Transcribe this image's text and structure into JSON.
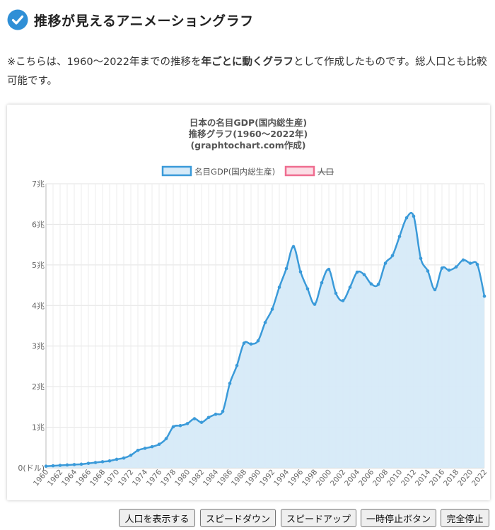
{
  "header": {
    "title": "推移が見えるアニメーショングラフ",
    "icon": "check-circle-icon",
    "icon_color": "#2f8fd6"
  },
  "description": {
    "part1": "※こちらは、1960〜2022年までの推移を",
    "bold": "年ごとに動くグラフ",
    "part2": "として作成したものです。総人口とも比較可能です。"
  },
  "chart_data": {
    "type": "area",
    "title": [
      "日本の名目GDP(国内総生産)",
      "推移グラフ(1960〜2022年)",
      "(graphtochart.com作成)"
    ],
    "legend": [
      {
        "label": "名目GDP(国内総生産)",
        "color": "#3a9ad9",
        "fill": "#d6eaf8",
        "hidden": false
      },
      {
        "label": "人口",
        "color": "#ef6d90",
        "fill": "#fbdde5",
        "hidden": true
      }
    ],
    "legend_position": "top",
    "yticks": [
      "0(ドル)",
      "1兆",
      "2兆",
      "3兆",
      "4兆",
      "5兆",
      "6兆",
      "7兆"
    ],
    "ylim": [
      0,
      7
    ],
    "grid": true,
    "x": [
      1960,
      1961,
      1962,
      1963,
      1964,
      1965,
      1966,
      1967,
      1968,
      1969,
      1970,
      1971,
      1972,
      1973,
      1974,
      1975,
      1976,
      1977,
      1978,
      1979,
      1980,
      1981,
      1982,
      1983,
      1984,
      1985,
      1986,
      1987,
      1988,
      1989,
      1990,
      1991,
      1992,
      1993,
      1994,
      1995,
      1996,
      1997,
      1998,
      1999,
      2000,
      2001,
      2002,
      2003,
      2004,
      2005,
      2006,
      2007,
      2008,
      2009,
      2010,
      2011,
      2012,
      2013,
      2014,
      2015,
      2016,
      2017,
      2018,
      2019,
      2020,
      2021,
      2022
    ],
    "xticks": [
      "1960",
      "1962",
      "1964",
      "1966",
      "1968",
      "1970",
      "1972",
      "1974",
      "1976",
      "1978",
      "1980",
      "1982",
      "1984",
      "1986",
      "1988",
      "1990",
      "1992",
      "1994",
      "1996",
      "1998",
      "2000",
      "2002",
      "2004",
      "2006",
      "2008",
      "2010",
      "2012",
      "2014",
      "2016",
      "2018",
      "2020",
      "2022"
    ],
    "series": [
      {
        "name": "名目GDP(国内総生産)",
        "values": [
          0.04,
          0.05,
          0.06,
          0.07,
          0.08,
          0.09,
          0.11,
          0.13,
          0.15,
          0.17,
          0.21,
          0.24,
          0.31,
          0.43,
          0.48,
          0.52,
          0.58,
          0.72,
          1.01,
          1.04,
          1.09,
          1.21,
          1.12,
          1.24,
          1.32,
          1.39,
          2.08,
          2.52,
          3.07,
          3.05,
          3.13,
          3.58,
          3.91,
          4.45,
          4.91,
          5.45,
          4.83,
          4.41,
          4.03,
          4.56,
          4.89,
          4.3,
          4.12,
          4.45,
          4.82,
          4.76,
          4.53,
          4.52,
          5.04,
          5.23,
          5.7,
          6.16,
          6.2,
          5.16,
          4.85,
          4.39,
          4.92,
          4.87,
          4.95,
          5.12,
          5.04,
          5.01,
          4.23
        ]
      }
    ]
  },
  "controls": [
    {
      "key": "show_population",
      "label": "人口を表示する"
    },
    {
      "key": "speed_down",
      "label": "スピードダウン"
    },
    {
      "key": "speed_up",
      "label": "スピードアップ"
    },
    {
      "key": "pause",
      "label": "一時停止ボタン"
    },
    {
      "key": "stop",
      "label": "完全停止"
    }
  ]
}
